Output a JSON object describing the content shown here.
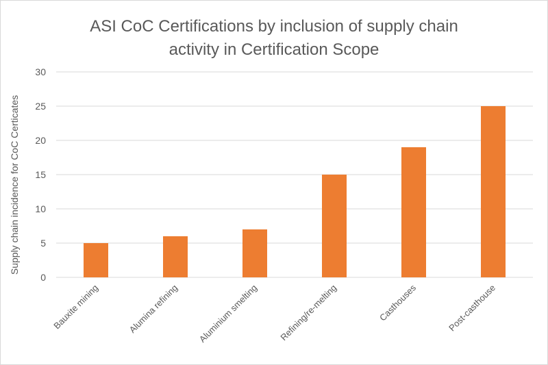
{
  "chart_data": {
    "type": "bar",
    "title": "ASI CoC Certifications by inclusion of supply chain activity in Certification Scope",
    "title_lines": [
      "ASI CoC Certifications by inclusion of supply chain",
      "activity in Certification Scope"
    ],
    "xlabel": "",
    "ylabel": "Supply chain incidence for CoC Certicates",
    "categories": [
      "Bauxite mining",
      "Alumina refining",
      "Aluminium smelting",
      "Refining/re-melting",
      "Casthouses",
      "Post-casthouse"
    ],
    "values": [
      5,
      6,
      7,
      15,
      19,
      25
    ],
    "ylim": [
      0,
      30
    ],
    "yticks": [
      0,
      5,
      10,
      15,
      20,
      25,
      30
    ],
    "grid": true,
    "legend": "none",
    "bar_color": "#ED7D31"
  }
}
